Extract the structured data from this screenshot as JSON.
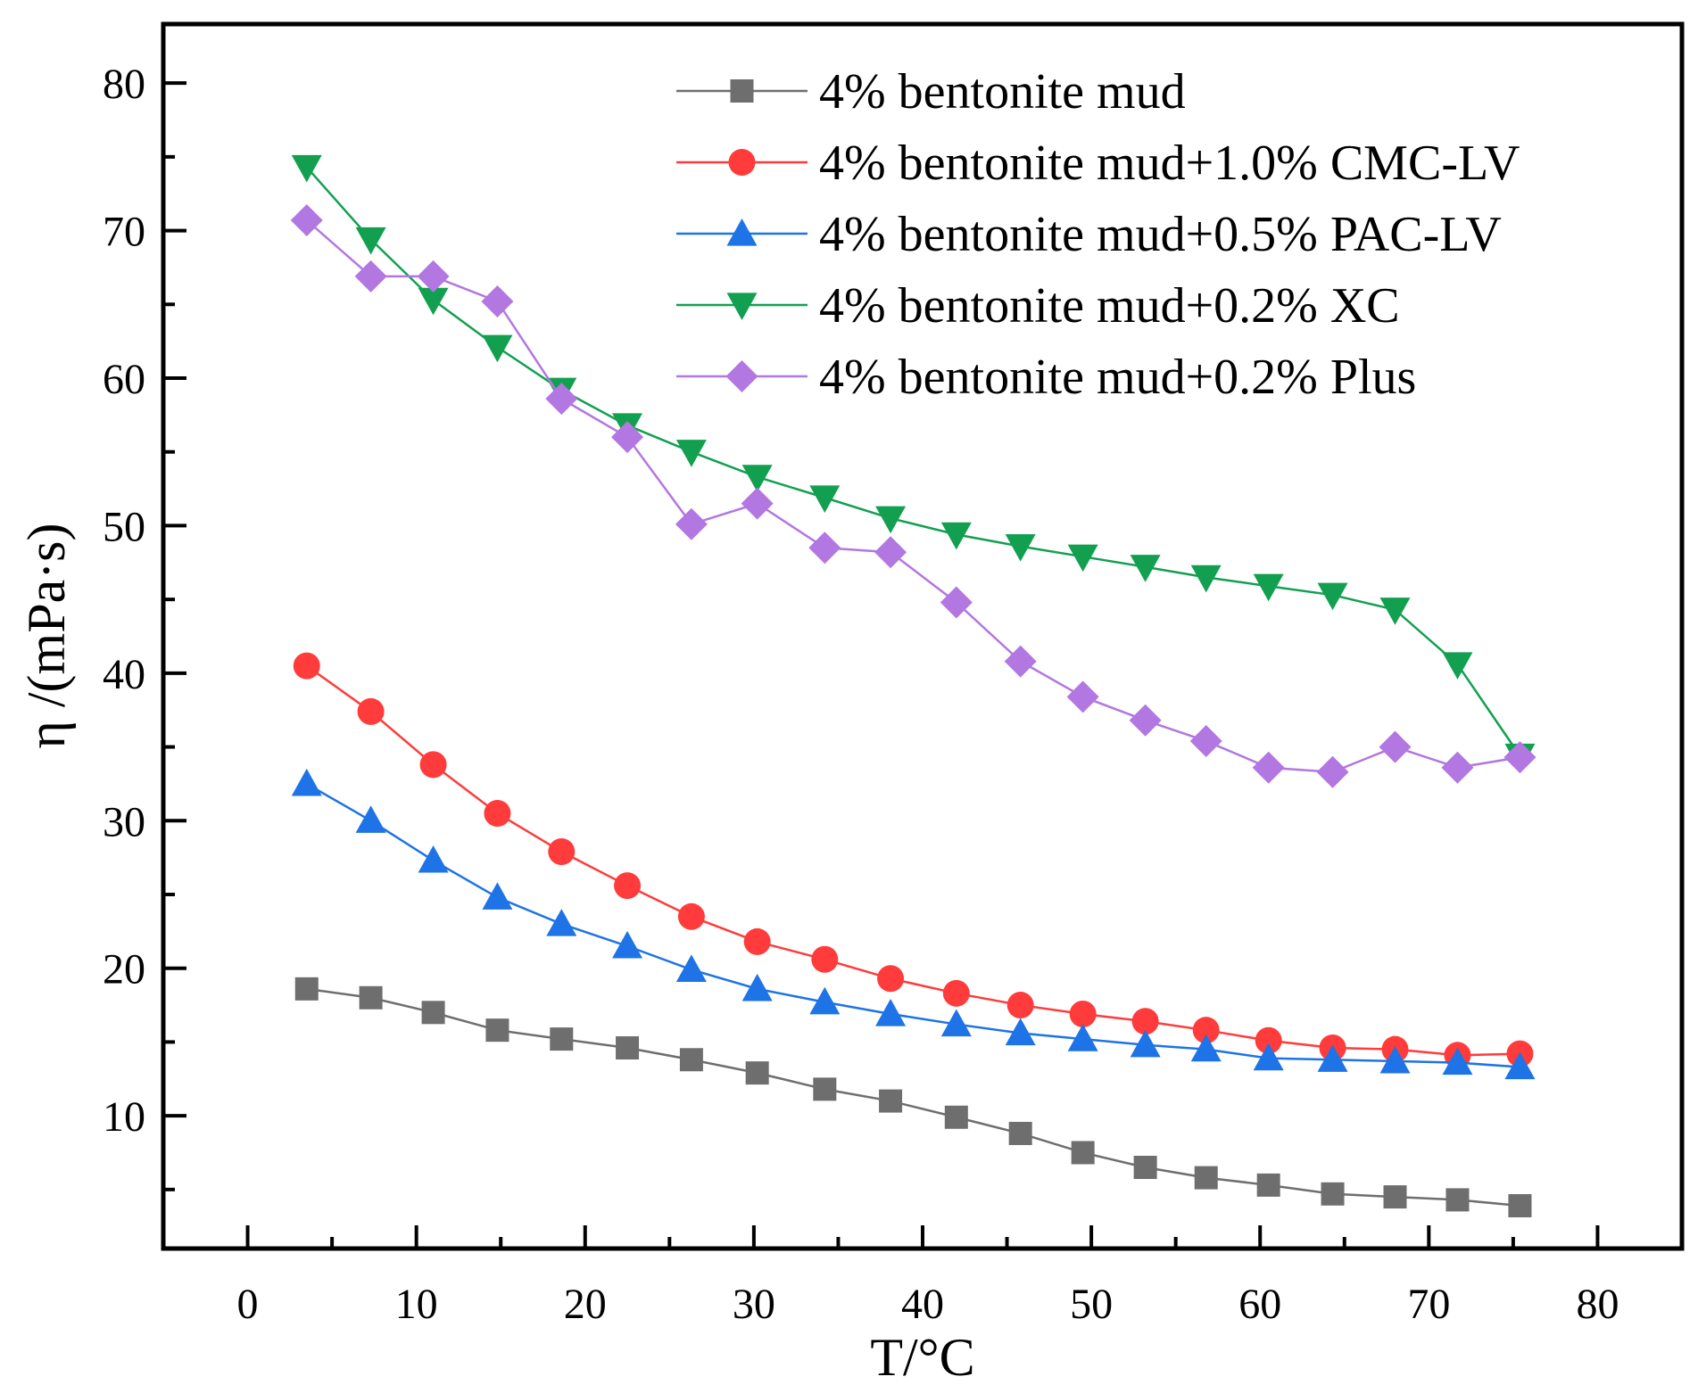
{
  "chart_data": {
    "type": "line",
    "title": "",
    "xlabel": "T/°C",
    "ylabel": "η /(mPa·s)",
    "xlim": [
      -5,
      85
    ],
    "ylim": [
      1,
      84
    ],
    "xticks": [
      0,
      10,
      20,
      30,
      40,
      50,
      60,
      70,
      80
    ],
    "yticks": [
      10,
      20,
      30,
      40,
      50,
      60,
      70,
      80
    ],
    "legend_position": "top-right",
    "grid": false,
    "x": [
      3.5,
      7.3,
      11.0,
      14.8,
      18.6,
      22.5,
      26.3,
      30.2,
      34.2,
      38.1,
      42.0,
      45.8,
      49.5,
      53.2,
      56.8,
      60.5,
      64.3,
      68.0,
      71.7,
      75.4
    ],
    "series": [
      {
        "name": "4% bentonite mud",
        "color": "#6e6e6e",
        "marker": "square",
        "values": [
          18.6,
          18.0,
          17.0,
          15.8,
          15.2,
          14.6,
          13.8,
          12.9,
          11.8,
          11.0,
          9.9,
          8.8,
          7.5,
          6.5,
          5.8,
          5.3,
          4.7,
          4.5,
          4.3,
          3.9
        ]
      },
      {
        "name": "4% bentonite mud+1.0% CMC-LV",
        "color": "#ff3b3b",
        "marker": "circle",
        "values": [
          40.5,
          37.4,
          33.8,
          30.5,
          27.9,
          25.6,
          23.5,
          21.8,
          20.6,
          19.3,
          18.3,
          17.5,
          16.9,
          16.4,
          15.8,
          15.1,
          14.6,
          14.5,
          14.1,
          14.2
        ]
      },
      {
        "name": "4% bentonite mud+0.5% PAC-LV",
        "color": "#1e73e6",
        "marker": "triangle-up",
        "values": [
          32.5,
          30.0,
          27.3,
          24.8,
          23.0,
          21.5,
          19.9,
          18.6,
          17.7,
          16.9,
          16.2,
          15.6,
          15.2,
          14.8,
          14.5,
          13.9,
          13.8,
          13.7,
          13.6,
          13.3
        ]
      },
      {
        "name": "4% bentonite mud+0.2% XC",
        "color": "#12a050",
        "marker": "triangle-down",
        "values": [
          74.3,
          69.4,
          65.3,
          62.1,
          59.2,
          56.8,
          55.0,
          53.3,
          51.9,
          50.5,
          49.4,
          48.6,
          47.9,
          47.2,
          46.5,
          45.9,
          45.3,
          44.3,
          40.6,
          34.4
        ]
      },
      {
        "name": "4% bentonite mud+0.2% Plus",
        "color": "#b277e0",
        "marker": "diamond",
        "values": [
          70.7,
          66.9,
          66.9,
          65.2,
          58.6,
          56.0,
          50.1,
          51.5,
          48.5,
          48.2,
          44.8,
          40.8,
          38.4,
          36.8,
          35.4,
          33.6,
          33.3,
          35.0,
          33.6,
          34.3
        ]
      }
    ]
  }
}
